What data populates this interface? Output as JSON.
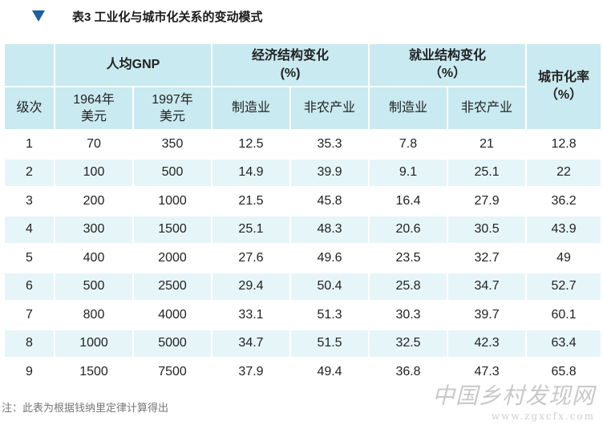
{
  "title": "表3  工业化与城市化关系的变动模式",
  "header": {
    "gnp_group": "人均GNP",
    "econ_group_line1": "经济结构变化",
    "econ_group_line2": "(%)",
    "emp_group_line1": "就业结构变化",
    "emp_group_line2": "（%）",
    "urban_line1": "城市化率",
    "urban_line2": "（%）",
    "level": "级次",
    "gnp1964_line1": "1964年",
    "gnp1964_line2": "美元",
    "gnp1997_line1": "1997年",
    "gnp1997_line2": "美元",
    "econ_mfg": "制造业",
    "econ_nonagri": "非农产业",
    "emp_mfg": "制造业",
    "emp_nonagri": "非农产业"
  },
  "rows": [
    [
      "1",
      "70",
      "350",
      "12.5",
      "35.3",
      "7.8",
      "21",
      "12.8"
    ],
    [
      "2",
      "100",
      "500",
      "14.9",
      "39.9",
      "9.1",
      "25.1",
      "22"
    ],
    [
      "3",
      "200",
      "1000",
      "21.5",
      "45.8",
      "16.4",
      "27.9",
      "36.2"
    ],
    [
      "4",
      "300",
      "1500",
      "25.1",
      "48.3",
      "20.6",
      "30.5",
      "43.9"
    ],
    [
      "5",
      "400",
      "2000",
      "27.6",
      "49.6",
      "23.5",
      "32.7",
      "49"
    ],
    [
      "6",
      "500",
      "2500",
      "29.4",
      "50.4",
      "25.8",
      "34.7",
      "52.7"
    ],
    [
      "7",
      "800",
      "4000",
      "33.1",
      "51.3",
      "30.3",
      "39.7",
      "60.1"
    ],
    [
      "8",
      "1000",
      "5000",
      "34.7",
      "51.5",
      "32.5",
      "42.3",
      "63.4"
    ],
    [
      "9",
      "1500",
      "7500",
      "37.9",
      "49.4",
      "36.8",
      "47.3",
      "65.8"
    ]
  ],
  "footnote": "注：此表为根据钱纳里定律计算得出",
  "watermark": {
    "cn": "中国乡村发现网",
    "url": "www.zgxcfx.com"
  },
  "icons": {
    "title_marker": "triangle-down-icon"
  },
  "colors": {
    "header_bg": "#c9eaf0",
    "stripe_bg": "#e6f5f8",
    "marker": "#1f5f9e"
  }
}
